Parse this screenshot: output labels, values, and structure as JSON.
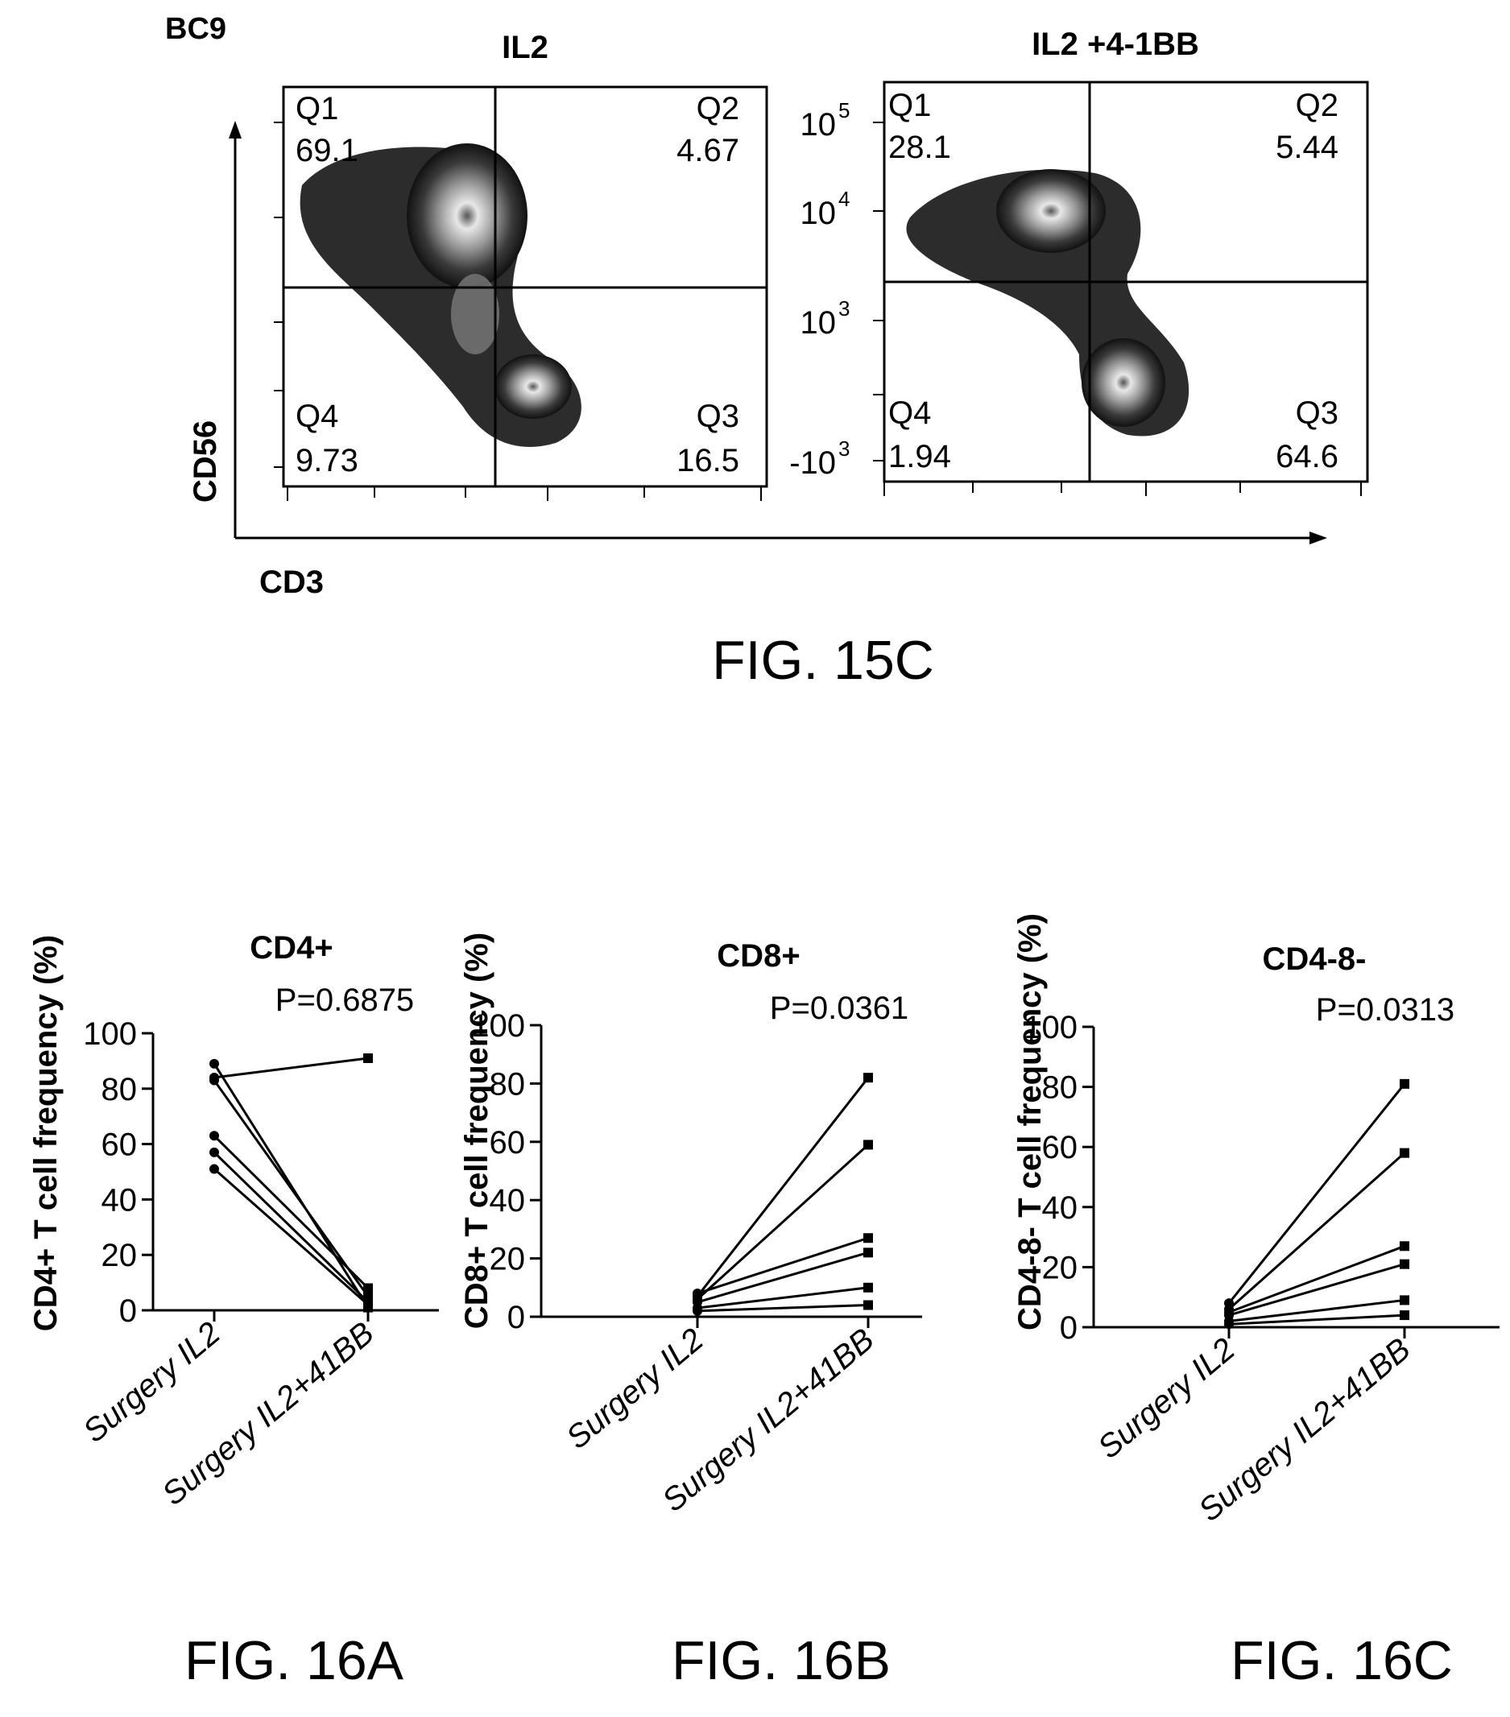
{
  "fig15c": {
    "sample_label": "BC9",
    "caption": "FIG. 15C",
    "x_axis_label": "CD3",
    "y_axis_label": "CD56",
    "y_tick_labels": [
      "10",
      "10",
      "10",
      "-10"
    ],
    "y_tick_exponents": [
      "5",
      "4",
      "3",
      "3"
    ],
    "panels": [
      {
        "title": "IL2",
        "quadrants": [
          {
            "name": "Q1",
            "value": "69.1"
          },
          {
            "name": "Q2",
            "value": "4.67"
          },
          {
            "name": "Q3",
            "value": "16.5"
          },
          {
            "name": "Q4",
            "value": "9.73"
          }
        ]
      },
      {
        "title": "IL2 +4-1BB",
        "quadrants": [
          {
            "name": "Q1",
            "value": "28.1"
          },
          {
            "name": "Q2",
            "value": "5.44"
          },
          {
            "name": "Q3",
            "value": "64.6"
          },
          {
            "name": "Q4",
            "value": "1.94"
          }
        ]
      }
    ]
  },
  "chart_data": [
    {
      "type": "line",
      "title": "CD4+",
      "annotation": "P=0.6875",
      "caption": "FIG. 16A",
      "ylabel": "CD4+ T cell frequency (%)",
      "categories": [
        "Surgery IL2",
        "Surgery IL2+41BB"
      ],
      "ylim": [
        0,
        100
      ],
      "yticks": [
        "0",
        "20",
        "40",
        "60",
        "80",
        "100"
      ],
      "pairs": [
        [
          89,
          1
        ],
        [
          84,
          91
        ],
        [
          83,
          5
        ],
        [
          63,
          8
        ],
        [
          57,
          3
        ],
        [
          51,
          2
        ]
      ]
    },
    {
      "type": "line",
      "title": "CD8+",
      "annotation": "P=0.0361",
      "caption": "FIG. 16B",
      "ylabel": "CD8+ T cell frequency (%)",
      "categories": [
        "Surgery IL2",
        "Surgery IL2+41BB"
      ],
      "ylim": [
        0,
        100
      ],
      "yticks": [
        "0",
        "20",
        "40",
        "60",
        "80",
        "100"
      ],
      "pairs": [
        [
          7,
          82
        ],
        [
          6,
          59
        ],
        [
          8,
          27
        ],
        [
          5,
          22
        ],
        [
          3,
          10
        ],
        [
          2,
          4
        ]
      ]
    },
    {
      "type": "line",
      "title": "CD4-8-",
      "annotation": "P=0.0313",
      "caption": "FIG. 16C",
      "ylabel": "CD4-8- T cell frequency (%)",
      "categories": [
        "Surgery IL2",
        "Surgery IL2+41BB"
      ],
      "ylim": [
        0,
        100
      ],
      "yticks": [
        "0",
        "20",
        "40",
        "60",
        "80",
        "100"
      ],
      "pairs": [
        [
          8,
          81
        ],
        [
          6,
          58
        ],
        [
          5,
          27
        ],
        [
          4,
          21
        ],
        [
          2,
          9
        ],
        [
          1,
          4
        ]
      ]
    }
  ]
}
